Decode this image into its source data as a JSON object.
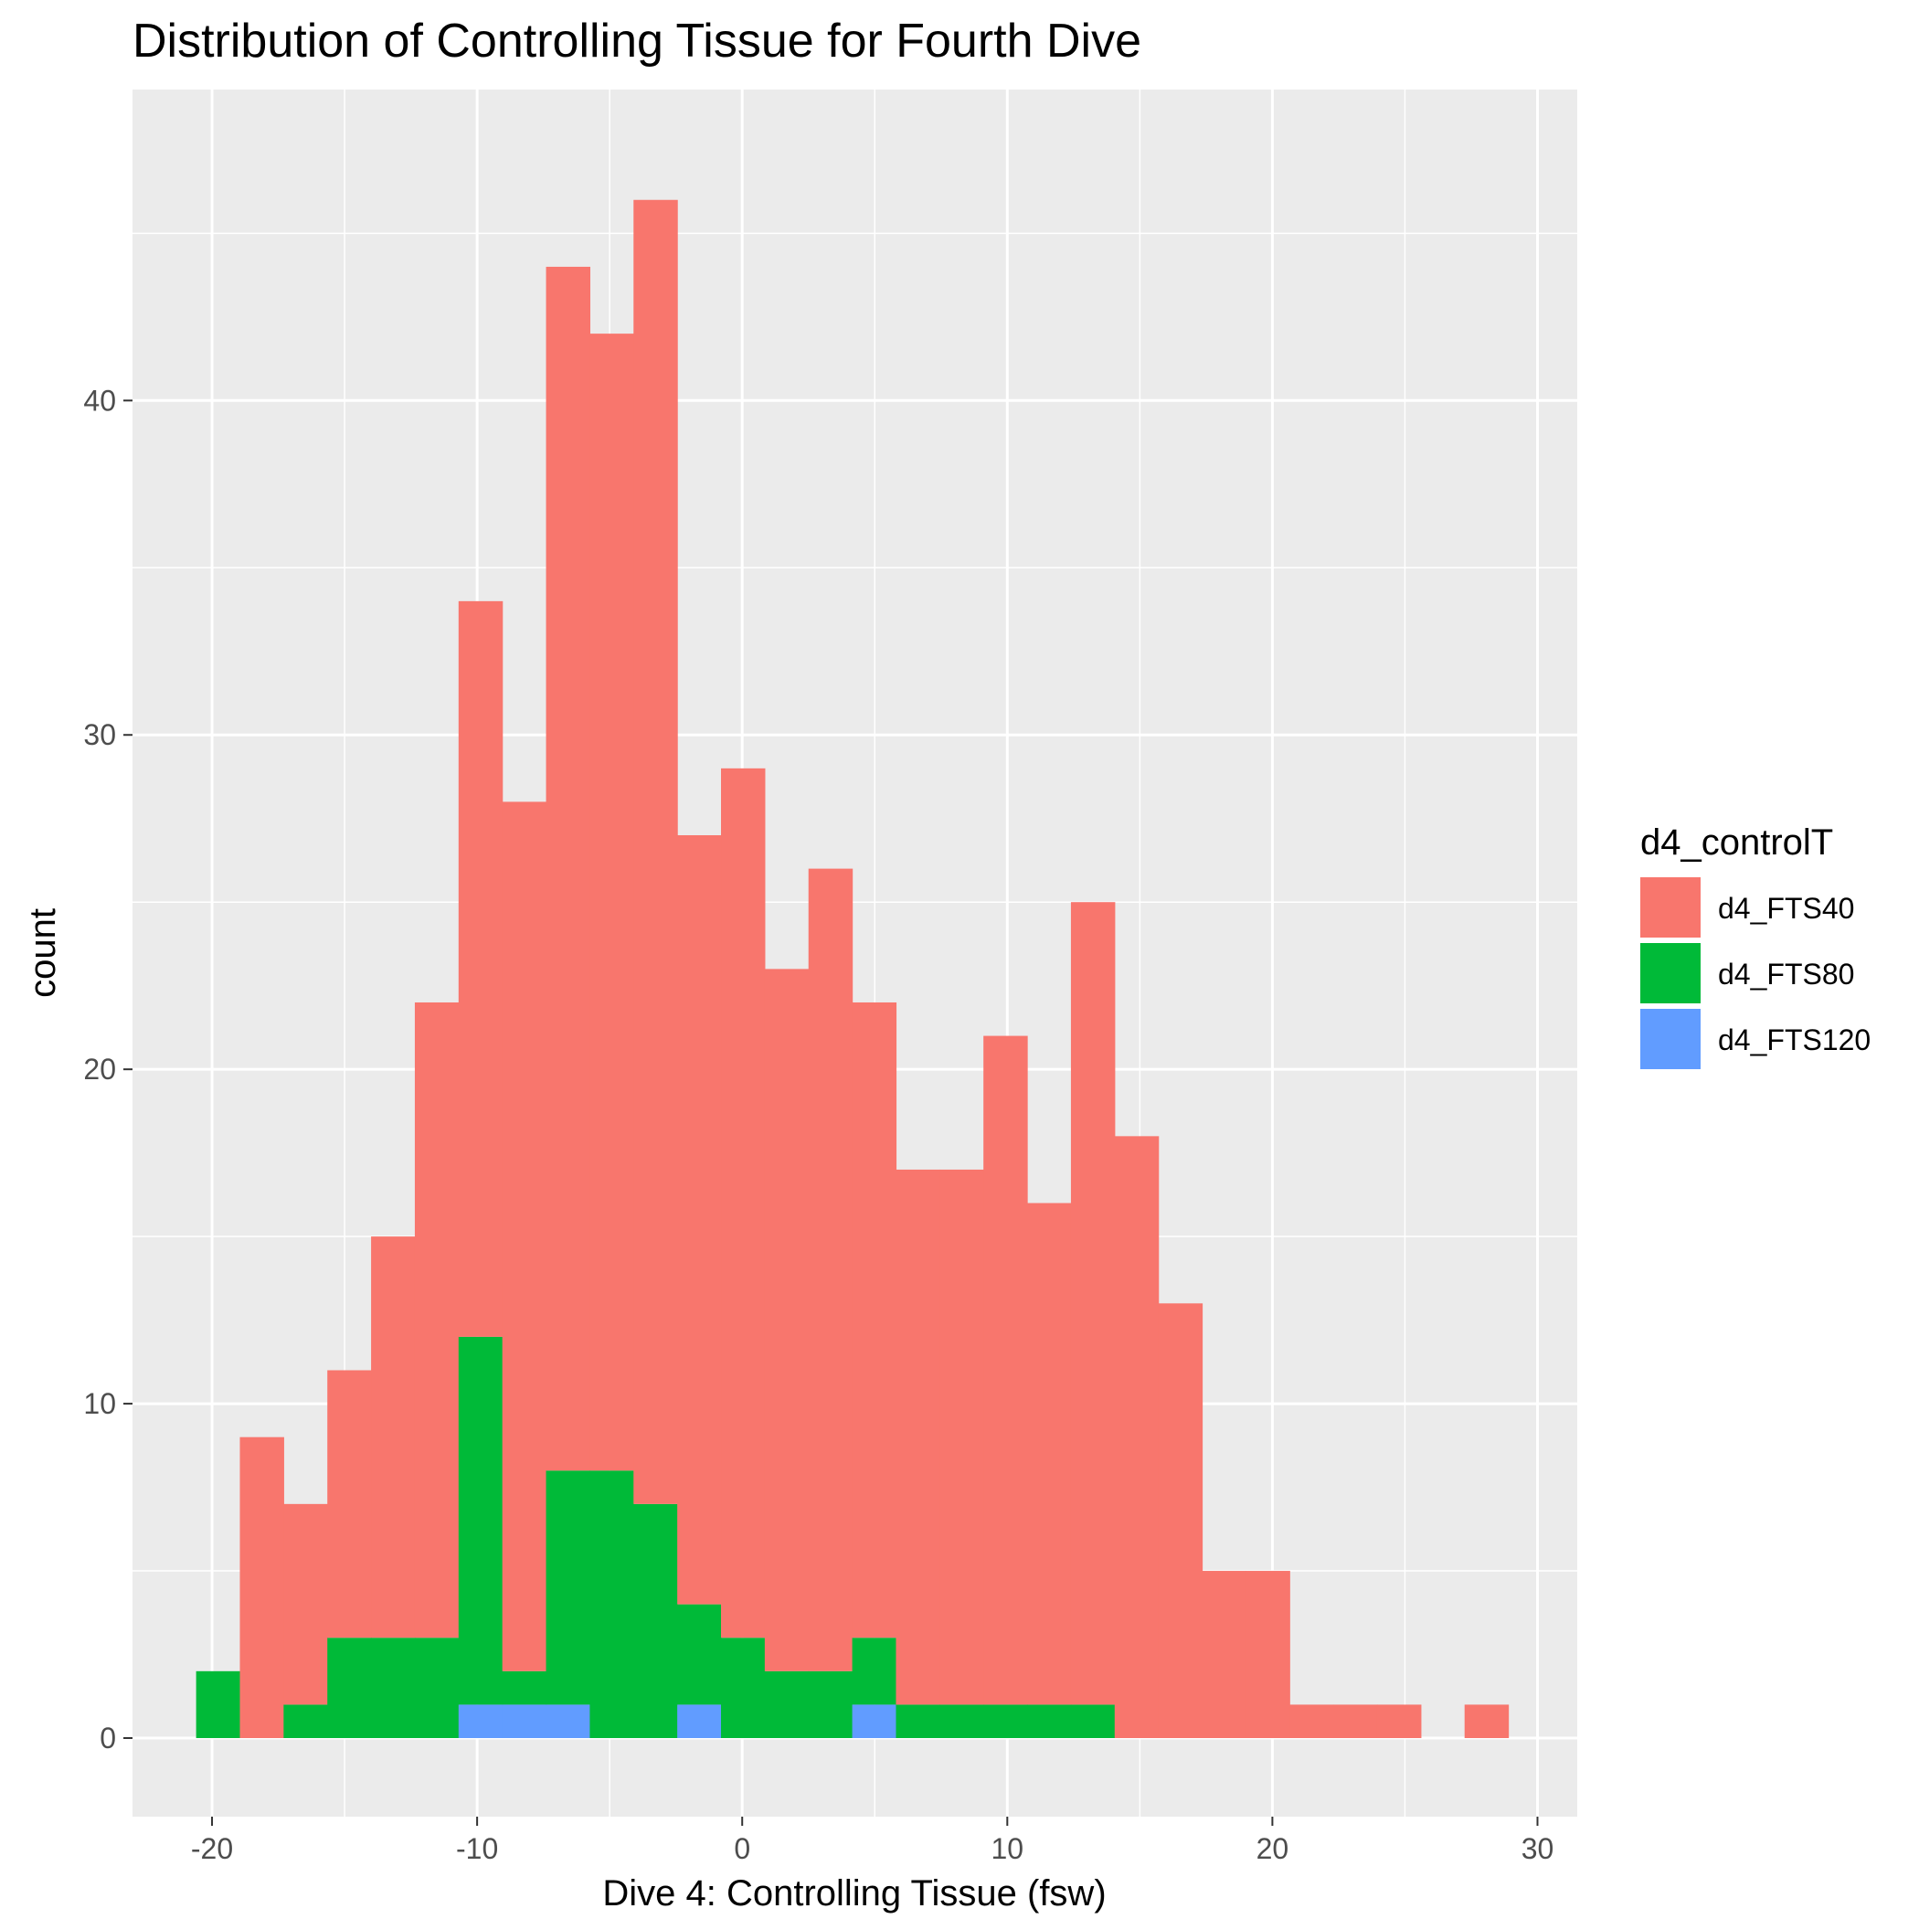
{
  "chart_data": {
    "type": "bar",
    "subtype": "stacked-histogram",
    "title": "Distribution of Controlling Tissue for Fourth Dive",
    "xlabel": "Dive 4: Controlling Tissue (fsw)",
    "ylabel": "count",
    "xlim": [
      -23.0,
      31.5
    ],
    "ylim": [
      -2.35,
      49.3
    ],
    "x_ticks": [
      -20,
      -10,
      0,
      10,
      20,
      30
    ],
    "x_tick_labels": [
      "-20",
      "-10",
      "0",
      "10",
      "20",
      "30"
    ],
    "y_ticks": [
      0,
      10,
      20,
      30,
      40
    ],
    "y_tick_labels": [
      "0",
      "10",
      "20",
      "30",
      "40"
    ],
    "grid": true,
    "bin_edges": [
      -20.6,
      -18.95,
      -17.3,
      -15.65,
      -14.0,
      -12.35,
      -10.7,
      -9.05,
      -7.4,
      -5.75,
      -4.1,
      -2.45,
      -0.8,
      0.85,
      2.5,
      4.15,
      5.8,
      7.45,
      9.1,
      10.75,
      12.4,
      14.05,
      15.7,
      17.35,
      19.0,
      20.65,
      22.3,
      23.95,
      25.6,
      27.25,
      28.9
    ],
    "legend": {
      "title": "d4_controlT",
      "position": "right"
    },
    "series": [
      {
        "name": "d4_FTS120",
        "color": "#619CFF",
        "values": [
          0,
          0,
          0,
          0,
          0,
          0,
          1,
          1,
          1,
          0,
          0,
          1,
          0,
          0,
          0,
          1,
          0,
          0,
          0,
          0,
          0,
          0,
          0,
          0,
          0,
          0,
          0,
          0,
          0,
          0
        ]
      },
      {
        "name": "d4_FTS80",
        "color": "#00BA38",
        "values": [
          2,
          0,
          1,
          3,
          3,
          3,
          11,
          1,
          7,
          8,
          7,
          3,
          3,
          2,
          2,
          2,
          1,
          1,
          1,
          1,
          1,
          0,
          0,
          0,
          0,
          0,
          0,
          0,
          0,
          0
        ]
      },
      {
        "name": "d4_FTS40",
        "color": "#F8766D",
        "values": [
          0,
          9,
          6,
          8,
          12,
          19,
          22,
          26,
          36,
          34,
          39,
          23,
          26,
          21,
          24,
          19,
          16,
          16,
          20,
          15,
          24,
          18,
          13,
          5,
          5,
          1,
          1,
          1,
          0,
          1
        ]
      }
    ],
    "legend_order": [
      "d4_FTS40",
      "d4_FTS80",
      "d4_FTS120"
    ]
  }
}
